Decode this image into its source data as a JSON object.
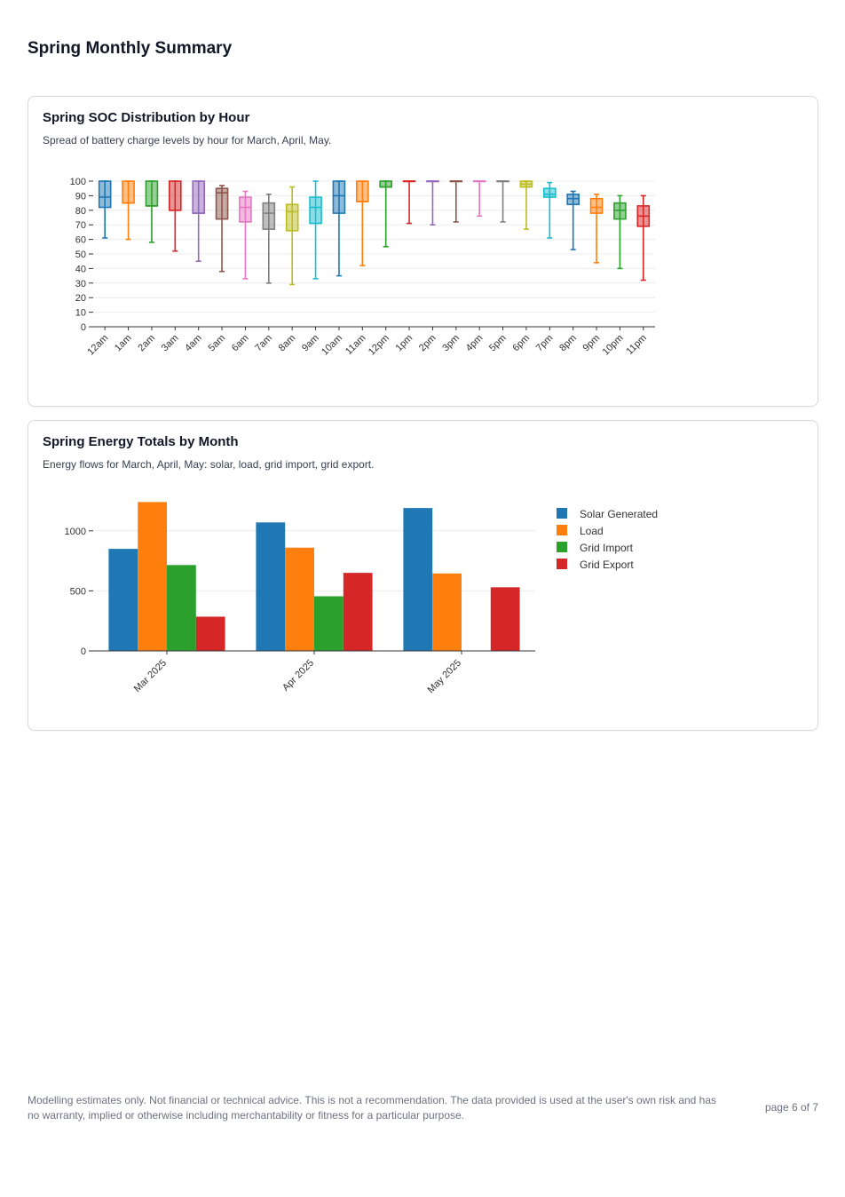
{
  "page": {
    "title": "Spring Monthly Summary",
    "footer_disclaimer": "Modelling estimates only. Not financial or technical advice. This is not a recommendation. The data provided is used at the user's own risk and has no warranty, implied or otherwise including merchantability or fitness for a particular purpose.",
    "page_number": "page 6 of 7"
  },
  "charts": [
    {
      "title": "Spring SOC Distribution by Hour",
      "subtitle": "Spread of battery charge levels by hour for March, April, May."
    },
    {
      "title": "Spring Energy Totals by Month",
      "subtitle": "Energy flows for March, April, May: solar, load, grid import, grid export."
    }
  ],
  "chart_data": [
    {
      "type": "box",
      "title": "Spring SOC Distribution by Hour",
      "ylim": [
        0,
        100
      ],
      "yticks": [
        0,
        10,
        20,
        30,
        40,
        50,
        60,
        70,
        80,
        90,
        100
      ],
      "grid": true,
      "legend": "none",
      "palette": [
        "#1f77b4",
        "#ff7f0e",
        "#2ca02c",
        "#d62728",
        "#9467bd",
        "#8c564b",
        "#e377c2",
        "#7f7f7f",
        "#bcbd22",
        "#17becf"
      ],
      "categories": [
        "12am",
        "1am",
        "2am",
        "3am",
        "4am",
        "5am",
        "6am",
        "7am",
        "8am",
        "9am",
        "10am",
        "11am",
        "12pm",
        "1pm",
        "2pm",
        "3pm",
        "4pm",
        "5pm",
        "6pm",
        "7pm",
        "8pm",
        "9pm",
        "10pm",
        "11pm"
      ],
      "boxes": [
        {
          "min": 61,
          "q1": 82,
          "median": 89,
          "q3": 100,
          "max": 100
        },
        {
          "min": 60,
          "q1": 85,
          "median": 85,
          "q3": 100,
          "max": 100
        },
        {
          "min": 58,
          "q1": 83,
          "median": 83,
          "q3": 100,
          "max": 100
        },
        {
          "min": 52,
          "q1": 80,
          "median": 80,
          "q3": 100,
          "max": 100
        },
        {
          "min": 45,
          "q1": 78,
          "median": 78,
          "q3": 100,
          "max": 100
        },
        {
          "min": 38,
          "q1": 74,
          "median": 92,
          "q3": 95,
          "max": 97
        },
        {
          "min": 33,
          "q1": 72,
          "median": 82,
          "q3": 89,
          "max": 93
        },
        {
          "min": 30,
          "q1": 67,
          "median": 78,
          "q3": 85,
          "max": 91
        },
        {
          "min": 29,
          "q1": 66,
          "median": 79,
          "q3": 84,
          "max": 96
        },
        {
          "min": 33,
          "q1": 71,
          "median": 82,
          "q3": 89,
          "max": 100
        },
        {
          "min": 35,
          "q1": 78,
          "median": 90,
          "q3": 100,
          "max": 100
        },
        {
          "min": 42,
          "q1": 86,
          "median": 86,
          "q3": 100,
          "max": 100
        },
        {
          "min": 55,
          "q1": 96,
          "median": 96,
          "q3": 100,
          "max": 100
        },
        {
          "min": 71,
          "q1": 100,
          "median": 100,
          "q3": 100,
          "max": 100
        },
        {
          "min": 70,
          "q1": 100,
          "median": 100,
          "q3": 100,
          "max": 100
        },
        {
          "min": 72,
          "q1": 100,
          "median": 100,
          "q3": 100,
          "max": 100
        },
        {
          "min": 76,
          "q1": 100,
          "median": 100,
          "q3": 100,
          "max": 100
        },
        {
          "min": 72,
          "q1": 100,
          "median": 100,
          "q3": 100,
          "max": 100
        },
        {
          "min": 67,
          "q1": 96,
          "median": 98,
          "q3": 100,
          "max": 100
        },
        {
          "min": 61,
          "q1": 89,
          "median": 91,
          "q3": 95,
          "max": 99
        },
        {
          "min": 53,
          "q1": 84,
          "median": 88,
          "q3": 91,
          "max": 93
        },
        {
          "min": 44,
          "q1": 78,
          "median": 82,
          "q3": 88,
          "max": 91
        },
        {
          "min": 40,
          "q1": 74,
          "median": 80,
          "q3": 85,
          "max": 90
        },
        {
          "min": 32,
          "q1": 69,
          "median": 76,
          "q3": 83,
          "max": 90
        }
      ]
    },
    {
      "type": "bar",
      "title": "Spring Energy Totals by Month",
      "categories": [
        "Mar 2025",
        "Apr 2025",
        "May 2025"
      ],
      "ylim": [
        0,
        1250
      ],
      "yticks": [
        0,
        500,
        1000
      ],
      "grid": true,
      "legend": "right",
      "series": [
        {
          "name": "Solar Generated",
          "color": "#1f77b4",
          "values": [
            850,
            1070,
            1190
          ]
        },
        {
          "name": "Load",
          "color": "#ff7f0e",
          "values": [
            1240,
            860,
            645
          ]
        },
        {
          "name": "Grid Import",
          "color": "#2ca02c",
          "values": [
            715,
            455,
            0
          ]
        },
        {
          "name": "Grid Export",
          "color": "#d62728",
          "values": [
            285,
            650,
            530
          ]
        }
      ]
    }
  ]
}
